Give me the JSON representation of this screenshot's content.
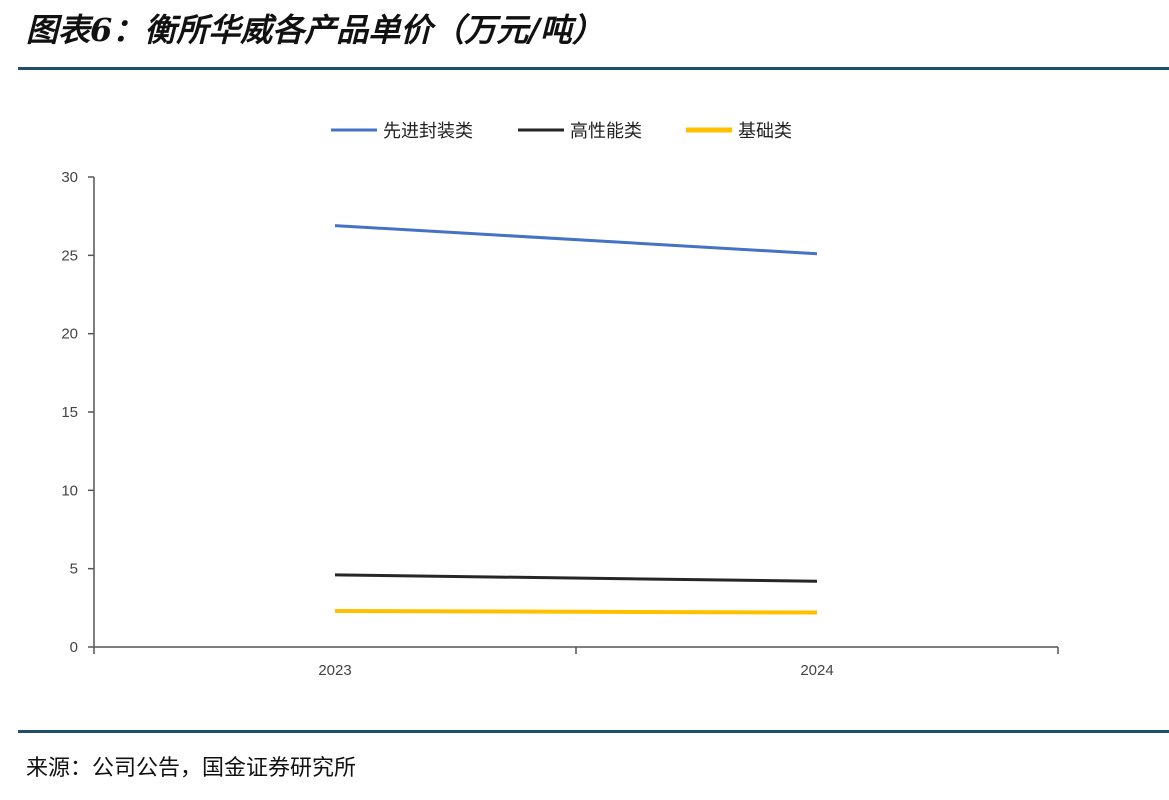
{
  "header": {
    "title": "图表6：衡所华威各产品单价（万元/吨）"
  },
  "footer": {
    "source": "来源：公司公告，国金证券研究所"
  },
  "chart_data": {
    "type": "line",
    "title": "",
    "xlabel": "",
    "ylabel": "",
    "categories": [
      "2023",
      "2024"
    ],
    "ylim": [
      0,
      30
    ],
    "yticks": [
      0,
      5,
      10,
      15,
      20,
      25,
      30
    ],
    "grid": false,
    "legend_position": "top",
    "series": [
      {
        "name": "先进封装类",
        "values": [
          26.9,
          25.1
        ],
        "color": "#4472c4"
      },
      {
        "name": "高性能类",
        "values": [
          4.6,
          4.2
        ],
        "color": "#262626"
      },
      {
        "name": "基础类",
        "values": [
          2.3,
          2.2
        ],
        "color": "#ffc000"
      }
    ]
  }
}
